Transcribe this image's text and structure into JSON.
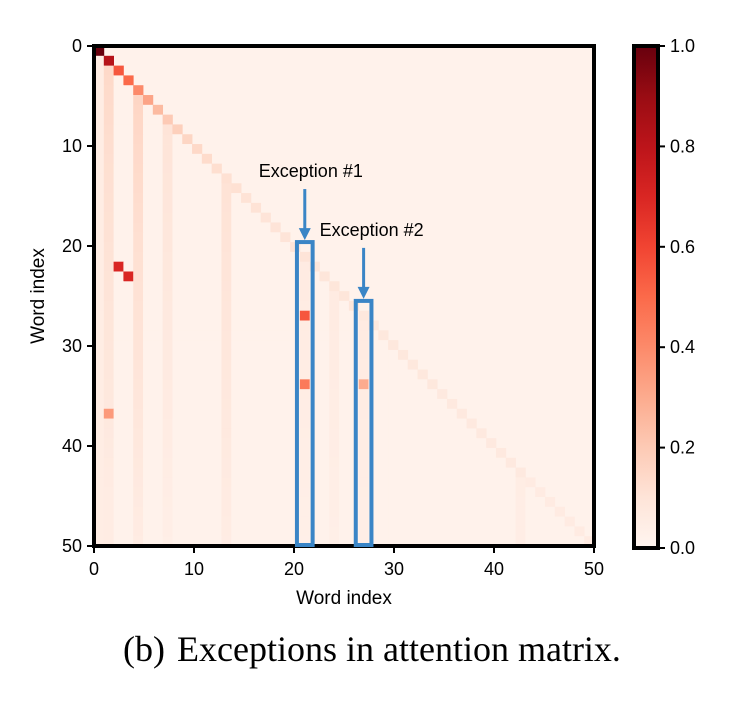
{
  "caption": {
    "label": "(b)",
    "text": "Exceptions in attention matrix."
  },
  "chart_data": {
    "type": "heatmap",
    "n": 51,
    "mask": "lower-triangular",
    "xlabel": "Word index",
    "ylabel": "Word index",
    "xlim": [
      0,
      50
    ],
    "ylim": [
      0,
      50
    ],
    "x_ticks": [
      0,
      10,
      20,
      30,
      40,
      50
    ],
    "y_ticks": [
      0,
      10,
      20,
      30,
      40,
      50
    ],
    "colorbar": {
      "range": [
        0.0,
        1.0
      ],
      "ticks": [
        "0.0",
        "0.2",
        "0.4",
        "0.6",
        "0.8",
        "1.0"
      ],
      "colormap": "Reds"
    },
    "background_value": 0.02,
    "diagonal_values": [
      1.0,
      0.82,
      0.55,
      0.5,
      0.4,
      0.32,
      0.25,
      0.2,
      0.18,
      0.16,
      0.15,
      0.14,
      0.13,
      0.12,
      0.12,
      0.11,
      0.11,
      0.1,
      0.1,
      0.1,
      0.1,
      0.1,
      0.09,
      0.09,
      0.09,
      0.09,
      0.09,
      0.08,
      0.08,
      0.08,
      0.08,
      0.08,
      0.08,
      0.08,
      0.08,
      0.07,
      0.07,
      0.07,
      0.07,
      0.07,
      0.07,
      0.07,
      0.07,
      0.07,
      0.06,
      0.06,
      0.06,
      0.06,
      0.06,
      0.06,
      0.06
    ],
    "column_stripes": [
      {
        "col": 1,
        "value": 0.15
      },
      {
        "col": 4,
        "value": 0.16
      },
      {
        "col": 7,
        "value": 0.1
      },
      {
        "col": 13,
        "value": 0.11
      },
      {
        "col": 21,
        "value": 0.06
      },
      {
        "col": 24,
        "value": 0.06
      },
      {
        "col": 27,
        "value": 0.06
      },
      {
        "col": 43,
        "value": 0.05
      }
    ],
    "highlights": [
      {
        "row": 22,
        "col": 2,
        "value": 0.7
      },
      {
        "row": 23,
        "col": 3,
        "value": 0.7
      },
      {
        "row": 37,
        "col": 1,
        "value": 0.35
      },
      {
        "row": 27,
        "col": 21,
        "value": 0.55
      },
      {
        "row": 34,
        "col": 21,
        "value": 0.45
      },
      {
        "row": 34,
        "col": 27,
        "value": 0.3
      }
    ],
    "annotations": [
      {
        "text": "Exception #1",
        "column": 21,
        "box_rows": [
          20,
          50
        ],
        "arrow_from_row": 15,
        "arrow_to_row": 20,
        "color": "#3a85c6"
      },
      {
        "text": "Exception #2",
        "column": 27,
        "box_rows": [
          26,
          50
        ],
        "arrow_from_row": 21,
        "arrow_to_row": 26,
        "color": "#3a85c6"
      }
    ]
  }
}
